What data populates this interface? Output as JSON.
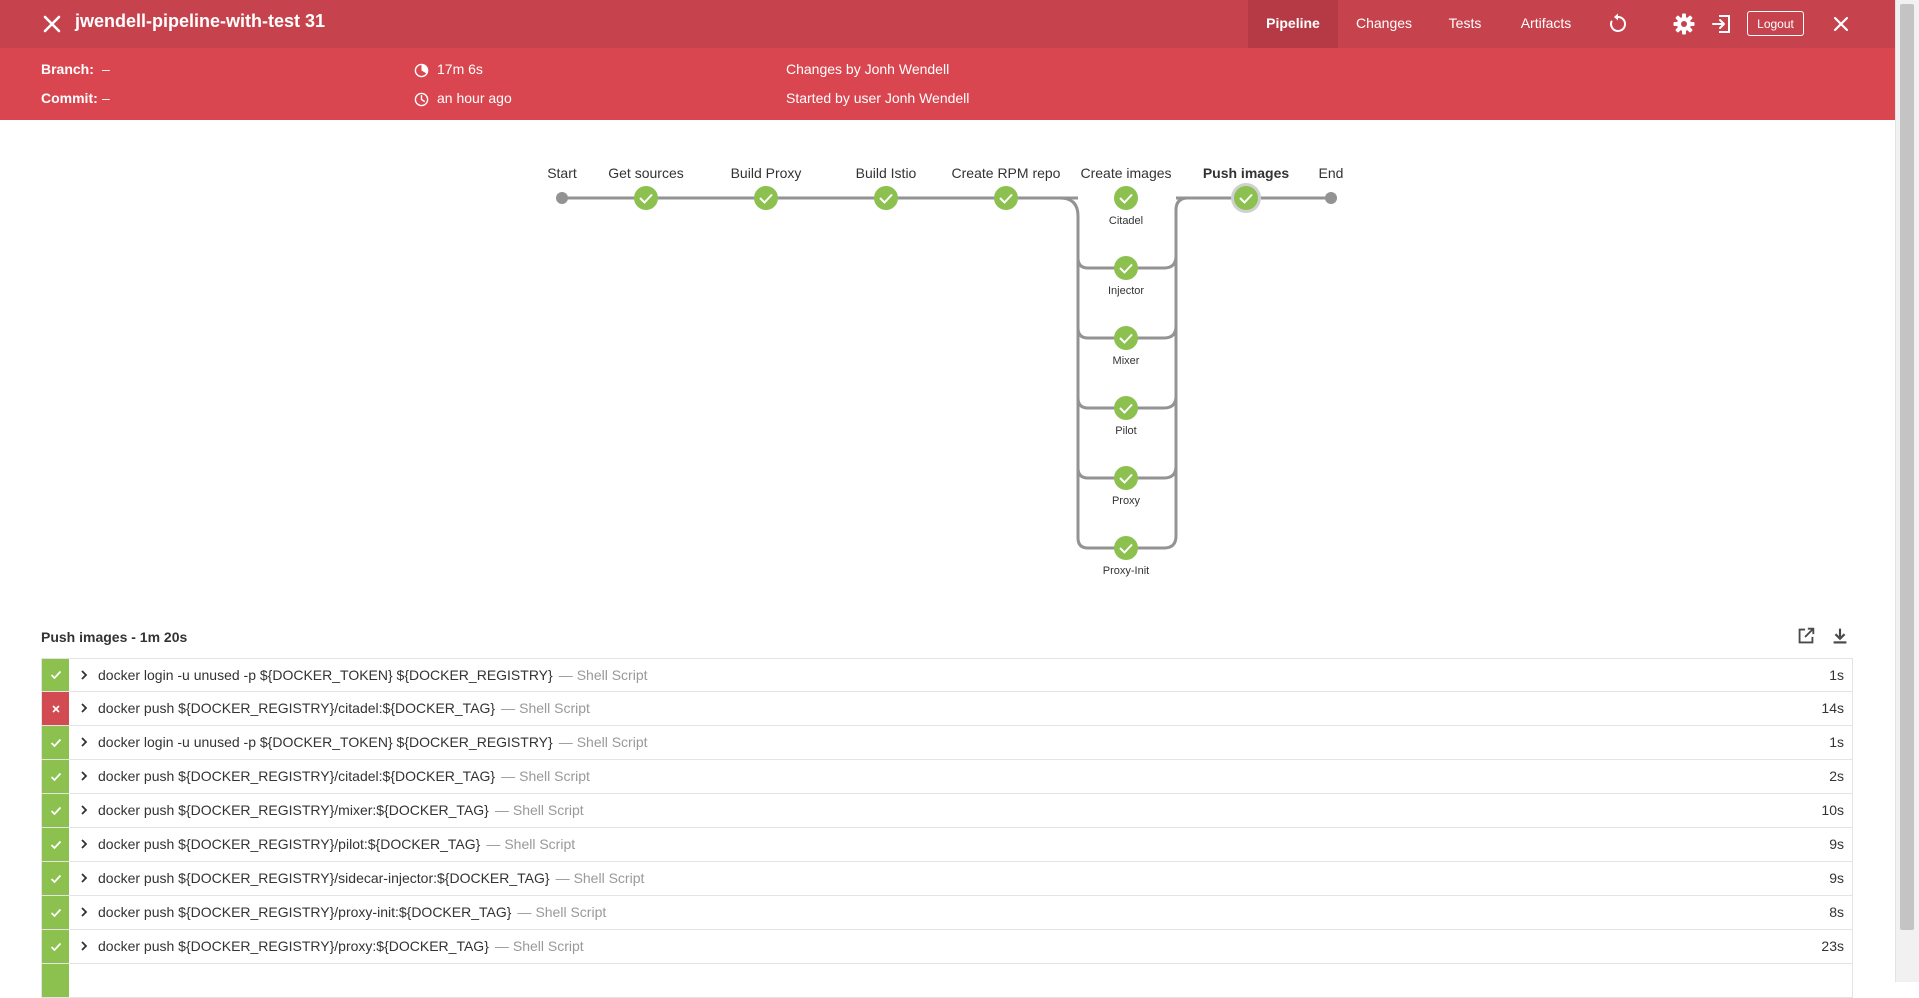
{
  "header": {
    "run_title": "jwendell-pipeline-with-test 31",
    "tabs": [
      "Pipeline",
      "Changes",
      "Tests",
      "Artifacts"
    ],
    "active_tab": "Pipeline",
    "logout_label": "Logout",
    "icons": [
      "close-icon",
      "replay-icon",
      "gear-icon",
      "exit-icon",
      "close-icon"
    ],
    "color": "#c6424d"
  },
  "summary": {
    "branch_label": "Branch:",
    "branch_value": "–",
    "commit_label": "Commit:",
    "commit_value": "–",
    "duration": "17m 6s",
    "started": "an hour ago",
    "changes": "Changes by Jonh Wendell",
    "started_by": "Started by user Jonh Wendell",
    "color": "#d9464f"
  },
  "pipeline": {
    "start_label": "Start",
    "end_label": "End",
    "stages": [
      "Get sources",
      "Build Proxy",
      "Build Istio",
      "Create RPM repo",
      "Create images",
      "Push images"
    ],
    "selected_stage": "Push images",
    "parallel_stage": "Create images",
    "parallel_branches": [
      "Citadel",
      "Injector",
      "Mixer",
      "Pilot",
      "Proxy",
      "Proxy-Init"
    ],
    "success_color": "#8cc04f"
  },
  "steps": {
    "heading": "Push images - 1m 20s",
    "type_label": "Shell Script",
    "rows": [
      {
        "status": "success",
        "command": "docker login -u unused -p ${DOCKER_TOKEN} ${DOCKER_REGISTRY}",
        "type": "Shell Script",
        "duration": "1s"
      },
      {
        "status": "failure",
        "command": "docker push ${DOCKER_REGISTRY}/citadel:${DOCKER_TAG}",
        "type": "Shell Script",
        "duration": "14s"
      },
      {
        "status": "success",
        "command": "docker login -u unused -p ${DOCKER_TOKEN} ${DOCKER_REGISTRY}",
        "type": "Shell Script",
        "duration": "1s"
      },
      {
        "status": "success",
        "command": "docker push ${DOCKER_REGISTRY}/citadel:${DOCKER_TAG}",
        "type": "Shell Script",
        "duration": "2s"
      },
      {
        "status": "success",
        "command": "docker push ${DOCKER_REGISTRY}/mixer:${DOCKER_TAG}",
        "type": "Shell Script",
        "duration": "10s"
      },
      {
        "status": "success",
        "command": "docker push ${DOCKER_REGISTRY}/pilot:${DOCKER_TAG}",
        "type": "Shell Script",
        "duration": "9s"
      },
      {
        "status": "success",
        "command": "docker push ${DOCKER_REGISTRY}/sidecar-injector:${DOCKER_TAG}",
        "type": "Shell Script",
        "duration": "9s"
      },
      {
        "status": "success",
        "command": "docker push ${DOCKER_REGISTRY}/proxy-init:${DOCKER_TAG}",
        "type": "Shell Script",
        "duration": "8s"
      },
      {
        "status": "success",
        "command": "docker push ${DOCKER_REGISTRY}/proxy:${DOCKER_TAG}",
        "type": "Shell Script",
        "duration": "23s"
      },
      {
        "status": "success",
        "command": "",
        "type": "",
        "duration": ""
      }
    ],
    "failure_color": "#d24a52"
  }
}
